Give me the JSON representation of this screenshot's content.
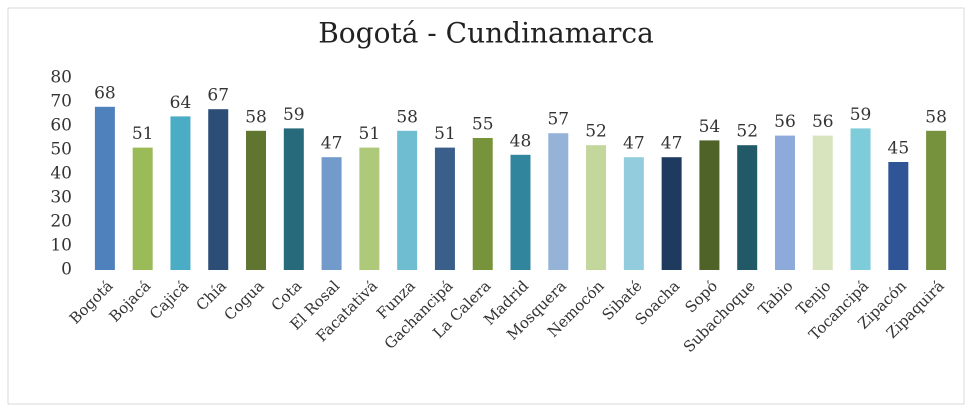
{
  "chart_data": {
    "type": "bar",
    "title": "Bogotá - Cundinamarca",
    "categories": [
      "Bogotá",
      "Bojacá",
      "Cajicá",
      "Chía",
      "Cogua",
      "Cota",
      "El Rosal",
      "Facatativá",
      "Funza",
      "Gachancipá",
      "La Calera",
      "Madrid",
      "Mosquera",
      "Nemocón",
      "Sibaté",
      "Soacha",
      "Sopó",
      "Subachoque",
      "Tabio",
      "Tenjo",
      "Tocancipá",
      "Zipacón",
      "Zipaquirá"
    ],
    "values": [
      68,
      51,
      64,
      67,
      58,
      59,
      47,
      51,
      58,
      51,
      55,
      48,
      57,
      52,
      47,
      47,
      54,
      52,
      56,
      56,
      59,
      45,
      58
    ],
    "colors": [
      "#4f81bd",
      "#9bbb59",
      "#4bacc6",
      "#2c4d75",
      "#5f7530",
      "#276a7c",
      "#729aca",
      "#afc97a",
      "#6fbdd1",
      "#3a5f8b",
      "#77933c",
      "#31859c",
      "#95b3d7",
      "#c3d69b",
      "#93cddd",
      "#1f3a5f",
      "#4f6228",
      "#215967",
      "#8eaadb",
      "#d7e4bd",
      "#7ecbd9",
      "#2f5597",
      "#76923c"
    ],
    "ylim": [
      0,
      80
    ],
    "yticks": [
      0,
      10,
      20,
      30,
      40,
      50,
      60,
      70,
      80
    ],
    "grid": false
  }
}
